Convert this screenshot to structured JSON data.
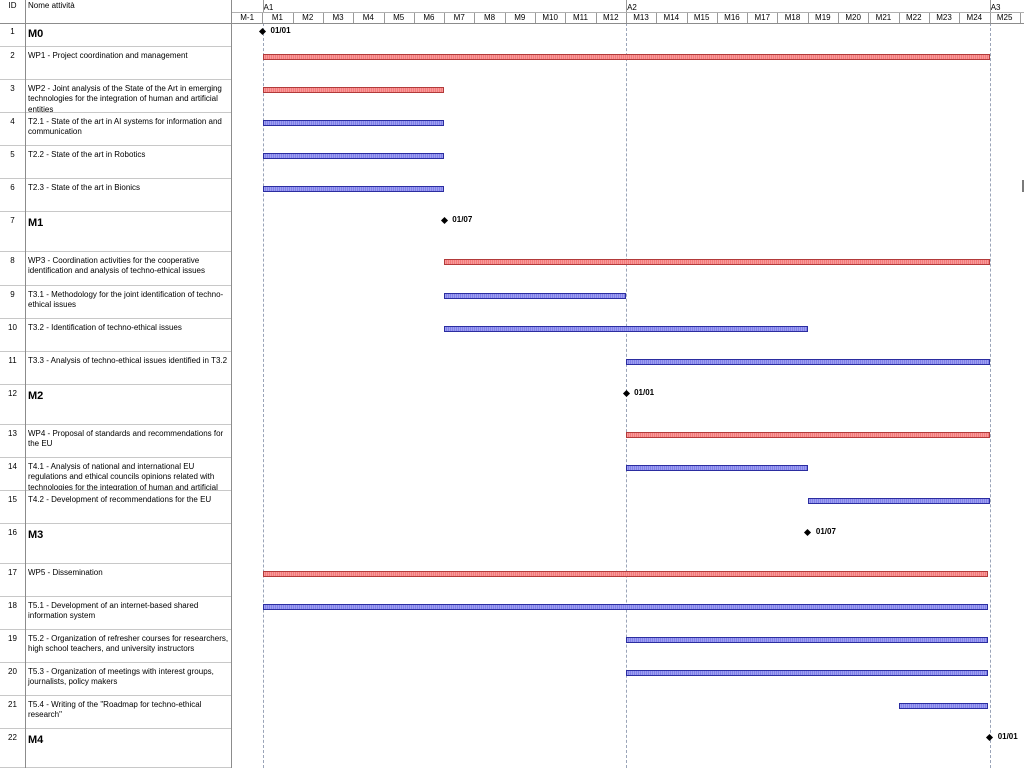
{
  "headers": {
    "id": "ID",
    "name": "Nome attività"
  },
  "years": [
    "A1",
    "A2",
    "A3"
  ],
  "months": [
    "M-1",
    "M1",
    "M2",
    "M3",
    "M4",
    "M5",
    "M6",
    "M7",
    "M8",
    "M9",
    "M10",
    "M11",
    "M12",
    "M13",
    "M14",
    "M15",
    "M16",
    "M17",
    "M18",
    "M19",
    "M20",
    "M21",
    "M22",
    "M23",
    "M24",
    "M25"
  ],
  "colors": {
    "workpackage": "#f47a7a",
    "task": "#7f80ea",
    "milestone": "#000000"
  },
  "tasks": [
    {
      "id": "1",
      "name": "M0",
      "type": "milestone",
      "start": 0,
      "label": "01/01"
    },
    {
      "id": "2",
      "name": "WP1 - Project coordination and management",
      "type": "workpackage",
      "start": 0,
      "end": 24
    },
    {
      "id": "3",
      "name": "WP2 - Joint analysis of the State of the Art in emerging technologies for the integration of human and artificial entities",
      "type": "workpackage",
      "start": 0,
      "end": 6
    },
    {
      "id": "4",
      "name": "T2.1 - State of the art in AI systems for information and communication",
      "type": "task",
      "start": 0,
      "end": 6
    },
    {
      "id": "5",
      "name": "T2.2 - State of the art in Robotics",
      "type": "task",
      "start": 0,
      "end": 6
    },
    {
      "id": "6",
      "name": "T2.3 - State of the art in Bionics",
      "type": "task",
      "start": 0,
      "end": 6
    },
    {
      "id": "7",
      "name": "M1",
      "type": "milestone",
      "start": 6,
      "label": "01/07"
    },
    {
      "id": "8",
      "name": "WP3 - Coordination activities for the cooperative identification and analysis of techno-ethical issues",
      "type": "workpackage",
      "start": 6,
      "end": 24
    },
    {
      "id": "9",
      "name": "T3.1 - Methodology for the joint identification of techno-ethical issues",
      "type": "task",
      "start": 6,
      "end": 12
    },
    {
      "id": "10",
      "name": "T3.2 - Identification of techno-ethical issues",
      "type": "task",
      "start": 6,
      "end": 18
    },
    {
      "id": "11",
      "name": "T3.3 - Analysis of techno-ethical issues identified in T3.2",
      "type": "task",
      "start": 12,
      "end": 24
    },
    {
      "id": "12",
      "name": "M2",
      "type": "milestone",
      "start": 12,
      "label": "01/01"
    },
    {
      "id": "13",
      "name": "WP4 - Proposal of standards and recommendations for the EU",
      "type": "workpackage",
      "start": 12,
      "end": 24
    },
    {
      "id": "14",
      "name": "T4.1 - Analysis of national and international EU regulations and ethical councils opinions related with technologies for the integration of human and artificial",
      "type": "task",
      "start": 12,
      "end": 18
    },
    {
      "id": "15",
      "name": "T4.2 - Development of recommendations for the EU",
      "type": "task",
      "start": 18,
      "end": 24
    },
    {
      "id": "16",
      "name": "M3",
      "type": "milestone",
      "start": 18,
      "label": "01/07"
    },
    {
      "id": "17",
      "name": "WP5 - Dissemination",
      "type": "workpackage",
      "start": 0,
      "end": 23.93
    },
    {
      "id": "18",
      "name": "T5.1 - Development of an internet-based shared information system",
      "type": "task",
      "start": 0,
      "end": 23.93
    },
    {
      "id": "19",
      "name": "T5.2 - Organization of refresher courses for researchers, high school teachers, and university instructors",
      "type": "task",
      "start": 12,
      "end": 23.93
    },
    {
      "id": "20",
      "name": "T5.3 - Organization of meetings with interest groups, journalists, policy makers",
      "type": "task",
      "start": 12,
      "end": 23.93
    },
    {
      "id": "21",
      "name": "T5.4 - Writing of the \"Roadmap for techno-ethical research\"",
      "type": "task",
      "start": 21,
      "end": 23.93
    },
    {
      "id": "22",
      "name": "M4",
      "type": "milestone",
      "start": 24,
      "label": "01/01"
    }
  ]
}
